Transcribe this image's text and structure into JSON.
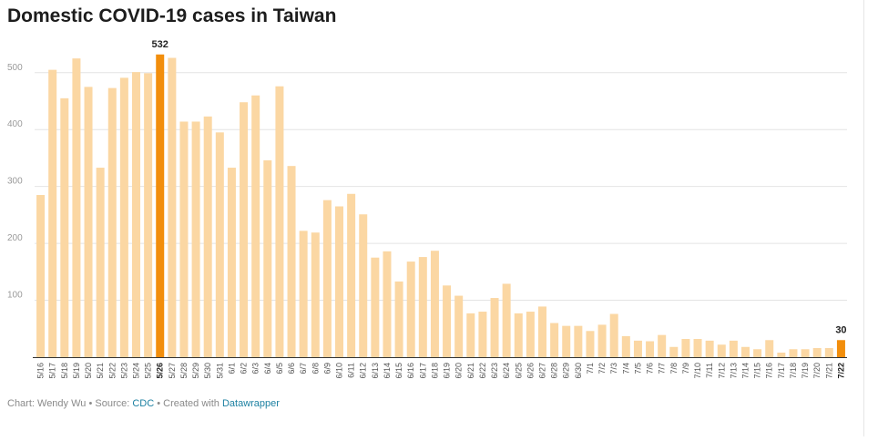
{
  "header": {
    "title": "Domestic COVID-19 cases in Taiwan"
  },
  "footer": {
    "prefix": "Chart: Wendy Wu • Source: ",
    "source_link": "CDC",
    "middle": " • Created with ",
    "tool_link": "Datawrapper"
  },
  "colors": {
    "bar": "#fbd7a3",
    "highlight": "#f28e0c",
    "grid": "#e4e4e4",
    "axis": "#333333",
    "tick": "#9a9a9a"
  },
  "chart_data": {
    "type": "bar",
    "title": "Domestic COVID-19 cases in Taiwan",
    "xlabel": "",
    "ylabel": "",
    "ylim": [
      0,
      550
    ],
    "yticks": [
      100,
      200,
      300,
      400,
      500
    ],
    "grid": true,
    "categories": [
      "5/16",
      "5/17",
      "5/18",
      "5/19",
      "5/20",
      "5/21",
      "5/22",
      "5/23",
      "5/24",
      "5/25",
      "5/26",
      "5/27",
      "5/28",
      "5/29",
      "5/30",
      "5/31",
      "6/1",
      "6/2",
      "6/3",
      "6/4",
      "6/5",
      "6/6",
      "6/7",
      "6/8",
      "6/9",
      "6/10",
      "6/11",
      "6/12",
      "6/13",
      "6/14",
      "6/15",
      "6/16",
      "6/17",
      "6/18",
      "6/19",
      "6/20",
      "6/21",
      "6/22",
      "6/23",
      "6/24",
      "6/25",
      "6/26",
      "6/27",
      "6/28",
      "6/29",
      "6/30",
      "7/1",
      "7/2",
      "7/3",
      "7/4",
      "7/5",
      "7/6",
      "7/7",
      "7/8",
      "7/9",
      "7/10",
      "7/11",
      "7/12",
      "7/13",
      "7/14",
      "7/15",
      "7/16",
      "7/17",
      "7/18",
      "7/19",
      "7/20",
      "7/21",
      "7/22"
    ],
    "values": [
      285,
      505,
      455,
      525,
      475,
      333,
      473,
      491,
      501,
      499,
      532,
      526,
      414,
      414,
      423,
      395,
      333,
      448,
      460,
      346,
      476,
      336,
      222,
      219,
      276,
      265,
      287,
      251,
      175,
      186,
      133,
      168,
      176,
      187,
      126,
      108,
      77,
      80,
      104,
      129,
      77,
      80,
      89,
      60,
      55,
      55,
      46,
      57,
      76,
      37,
      29,
      28,
      39,
      18,
      32,
      32,
      29,
      22,
      29,
      18,
      14,
      30,
      8,
      14,
      14,
      16,
      16,
      30
    ],
    "highlighted": [
      {
        "category": "5/26",
        "label": "532"
      },
      {
        "category": "7/22",
        "label": "30"
      }
    ]
  }
}
